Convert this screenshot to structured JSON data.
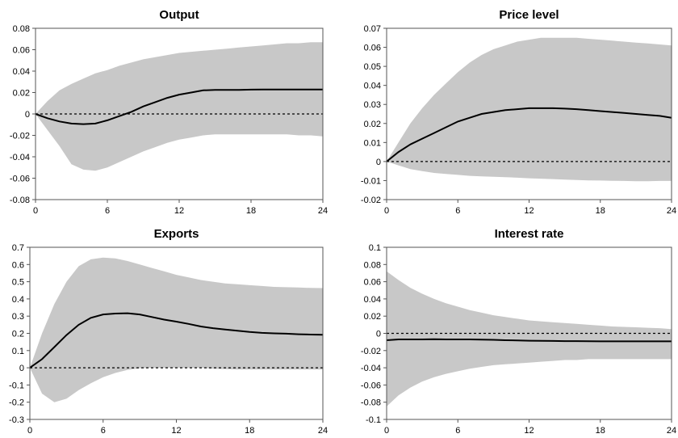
{
  "chart_data": [
    {
      "type": "line",
      "title": "Output",
      "xlim": [
        0,
        24
      ],
      "ylim": [
        -0.08,
        0.08
      ],
      "xticks": [
        "0",
        "6",
        "12",
        "18",
        "24"
      ],
      "yticks": [
        "0.08",
        "0.06",
        "0.04",
        "0.02",
        "0",
        "-0.02",
        "-0.04",
        "-0.06",
        "-0.08"
      ],
      "x": [
        0,
        1,
        2,
        3,
        4,
        5,
        6,
        7,
        8,
        9,
        10,
        11,
        12,
        13,
        14,
        15,
        16,
        17,
        18,
        19,
        20,
        21,
        22,
        23,
        24
      ],
      "series": [
        {
          "values": [
            0,
            -0.004,
            -0.007,
            -0.009,
            -0.0095,
            -0.009,
            -0.006,
            -0.002,
            0.002,
            0.007,
            0.011,
            0.015,
            0.018,
            0.02,
            0.022,
            0.0225,
            0.0225,
            0.0225,
            0.0227,
            0.0228,
            0.0228,
            0.0228,
            0.0228,
            0.0228,
            0.0228
          ]
        }
      ],
      "band_upper": [
        0,
        0.012,
        0.022,
        0.028,
        0.033,
        0.038,
        0.041,
        0.045,
        0.048,
        0.051,
        0.053,
        0.055,
        0.057,
        0.058,
        0.059,
        0.06,
        0.061,
        0.062,
        0.063,
        0.064,
        0.065,
        0.066,
        0.066,
        0.067,
        0.067
      ],
      "band_lower": [
        0,
        -0.015,
        -0.03,
        -0.047,
        -0.052,
        -0.053,
        -0.05,
        -0.045,
        -0.04,
        -0.035,
        -0.031,
        -0.027,
        -0.024,
        -0.022,
        -0.02,
        -0.019,
        -0.019,
        -0.019,
        -0.019,
        -0.019,
        -0.019,
        -0.019,
        -0.02,
        -0.02,
        -0.021
      ],
      "zero_line": "dashed"
    },
    {
      "type": "line",
      "title": "Price level",
      "xlim": [
        0,
        24
      ],
      "ylim": [
        -0.02,
        0.07
      ],
      "xticks": [
        "0",
        "6",
        "12",
        "18",
        "24"
      ],
      "yticks": [
        "0.07",
        "0.06",
        "0.05",
        "0.04",
        "0.03",
        "0.02",
        "0.01",
        "0",
        "-0.01",
        "-0.02"
      ],
      "x": [
        0,
        1,
        2,
        3,
        4,
        5,
        6,
        7,
        8,
        9,
        10,
        11,
        12,
        13,
        14,
        15,
        16,
        17,
        18,
        19,
        20,
        21,
        22,
        23,
        24
      ],
      "series": [
        {
          "values": [
            0,
            0.005,
            0.009,
            0.012,
            0.015,
            0.018,
            0.021,
            0.023,
            0.025,
            0.026,
            0.027,
            0.0275,
            0.028,
            0.028,
            0.028,
            0.0278,
            0.0275,
            0.027,
            0.0265,
            0.026,
            0.0255,
            0.025,
            0.0245,
            0.024,
            0.023
          ]
        }
      ],
      "band_upper": [
        0,
        0.01,
        0.02,
        0.028,
        0.035,
        0.041,
        0.047,
        0.052,
        0.056,
        0.059,
        0.061,
        0.063,
        0.064,
        0.065,
        0.065,
        0.065,
        0.065,
        0.0645,
        0.064,
        0.0635,
        0.063,
        0.0625,
        0.062,
        0.0615,
        0.061
      ],
      "band_lower": [
        0,
        -0.002,
        -0.004,
        -0.005,
        -0.006,
        -0.0065,
        -0.007,
        -0.0075,
        -0.0078,
        -0.008,
        -0.0082,
        -0.0085,
        -0.0088,
        -0.009,
        -0.0092,
        -0.0095,
        -0.0097,
        -0.0099,
        -0.01,
        -0.0101,
        -0.0102,
        -0.0103,
        -0.0103,
        -0.0102,
        -0.0102
      ],
      "zero_line": "dashed"
    },
    {
      "type": "line",
      "title": "Exports",
      "xlim": [
        0,
        24
      ],
      "ylim": [
        -0.3,
        0.7
      ],
      "xticks": [
        "0",
        "6",
        "12",
        "18",
        "24"
      ],
      "yticks": [
        "0.7",
        "0.6",
        "0.5",
        "0.4",
        "0.3",
        "0.2",
        "0.1",
        "0",
        "-0.1",
        "-0.2",
        "-0.3"
      ],
      "x": [
        0,
        1,
        2,
        3,
        4,
        5,
        6,
        7,
        8,
        9,
        10,
        11,
        12,
        13,
        14,
        15,
        16,
        17,
        18,
        19,
        20,
        21,
        22,
        23,
        24
      ],
      "series": [
        {
          "values": [
            0,
            0.05,
            0.12,
            0.19,
            0.25,
            0.29,
            0.31,
            0.315,
            0.317,
            0.31,
            0.295,
            0.28,
            0.268,
            0.255,
            0.24,
            0.23,
            0.222,
            0.215,
            0.208,
            0.203,
            0.2,
            0.198,
            0.195,
            0.193,
            0.192
          ]
        }
      ],
      "band_upper": [
        0,
        0.2,
        0.37,
        0.5,
        0.59,
        0.63,
        0.64,
        0.635,
        0.62,
        0.6,
        0.58,
        0.56,
        0.54,
        0.525,
        0.51,
        0.5,
        0.49,
        0.485,
        0.48,
        0.475,
        0.47,
        0.468,
        0.466,
        0.464,
        0.463
      ],
      "band_lower": [
        0,
        -0.15,
        -0.2,
        -0.18,
        -0.13,
        -0.09,
        -0.055,
        -0.03,
        -0.012,
        -0.003,
        0,
        0,
        0,
        0,
        0,
        -0.005,
        -0.008,
        -0.01,
        -0.01,
        -0.01,
        -0.01,
        -0.01,
        -0.01,
        -0.01,
        -0.01
      ],
      "zero_line": "dashed"
    },
    {
      "type": "line",
      "title": "Interest rate",
      "xlim": [
        0,
        24
      ],
      "ylim": [
        -0.1,
        0.1
      ],
      "xticks": [
        "0",
        "6",
        "12",
        "18",
        "24"
      ],
      "yticks": [
        "0.1",
        "0.08",
        "0.06",
        "0.04",
        "0.02",
        "0",
        "-0.02",
        "-0.04",
        "-0.06",
        "-0.08",
        "-0.1"
      ],
      "x": [
        0,
        1,
        2,
        3,
        4,
        5,
        6,
        7,
        8,
        9,
        10,
        11,
        12,
        13,
        14,
        15,
        16,
        17,
        18,
        19,
        20,
        21,
        22,
        23,
        24
      ],
      "series": [
        {
          "values": [
            -0.008,
            -0.007,
            -0.007,
            -0.007,
            -0.0068,
            -0.007,
            -0.007,
            -0.007,
            -0.0072,
            -0.0075,
            -0.008,
            -0.0082,
            -0.0085,
            -0.0087,
            -0.0088,
            -0.009,
            -0.009,
            -0.0092,
            -0.0093,
            -0.0093,
            -0.0093,
            -0.0093,
            -0.0093,
            -0.0093,
            -0.0093
          ]
        }
      ],
      "band_upper": [
        0.072,
        0.062,
        0.053,
        0.046,
        0.04,
        0.035,
        0.031,
        0.027,
        0.024,
        0.021,
        0.019,
        0.017,
        0.015,
        0.014,
        0.013,
        0.012,
        0.011,
        0.01,
        0.009,
        0.008,
        0.0075,
        0.007,
        0.0065,
        0.006,
        0.005
      ],
      "band_lower": [
        -0.085,
        -0.072,
        -0.063,
        -0.056,
        -0.051,
        -0.047,
        -0.044,
        -0.041,
        -0.039,
        -0.037,
        -0.036,
        -0.035,
        -0.034,
        -0.033,
        -0.032,
        -0.031,
        -0.031,
        -0.03,
        -0.03,
        -0.03,
        -0.03,
        -0.03,
        -0.03,
        -0.03,
        -0.03
      ],
      "zero_line": "dashed"
    }
  ]
}
